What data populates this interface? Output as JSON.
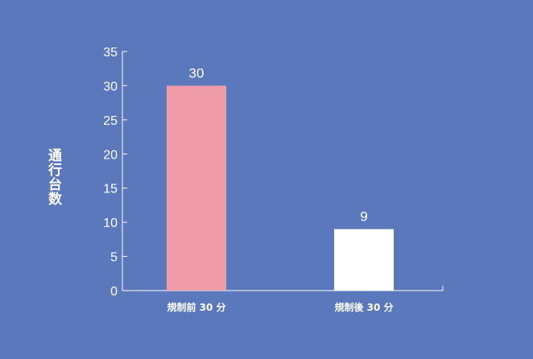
{
  "chart_data": {
    "type": "bar",
    "ylabel": "通行台数",
    "xlabel": "",
    "categories": [
      "規制前 30 分",
      "規制後 30 分"
    ],
    "values": [
      30,
      9
    ],
    "bar_colors": [
      "#f09ca8",
      "#ffffff"
    ],
    "ylim": [
      0,
      35
    ],
    "yticks": [
      0,
      5,
      10,
      15,
      20,
      25,
      30,
      35
    ],
    "data_labels": true,
    "grid": false,
    "legend": "none"
  },
  "colors": {
    "background": "#5a78bb",
    "axis": "#ffffff",
    "text": "#ffffff"
  }
}
